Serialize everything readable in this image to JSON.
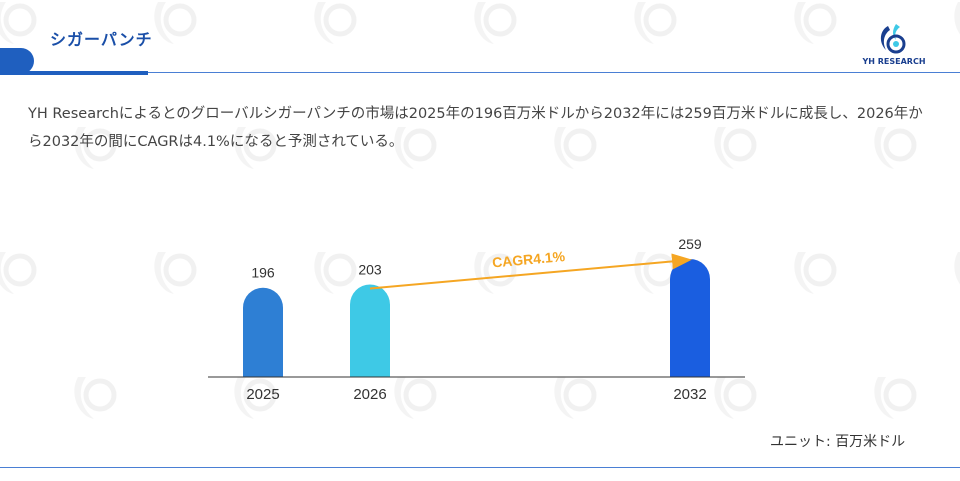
{
  "header": {
    "title": "シガーパンチ",
    "logo_text": "YH RESEARCH"
  },
  "description": "YH Researchによるとのグローバルシガーパンチの市場は2025年の196百万米ドルから2032年には259百万米ドルに成長し、2026年から2032年の間にCAGRは4.1%になると予測されている。",
  "unit_label": "ユニット: 百万米ドル",
  "colors": {
    "brand_blue": "#1f5fbf",
    "accent_orange": "#f5a623",
    "bar_2025": "#2e7fd4",
    "bar_2026": "#3ec9e6",
    "bar_2032": "#1a5ee0"
  },
  "chart_data": {
    "type": "bar",
    "categories": [
      "2025",
      "2026",
      "2032"
    ],
    "values": [
      196,
      203,
      259
    ],
    "title": "",
    "xlabel": "",
    "ylabel": "",
    "grid": false,
    "annotation": {
      "text": "CAGR4.1%",
      "from_category": "2026",
      "to_category": "2032"
    }
  }
}
